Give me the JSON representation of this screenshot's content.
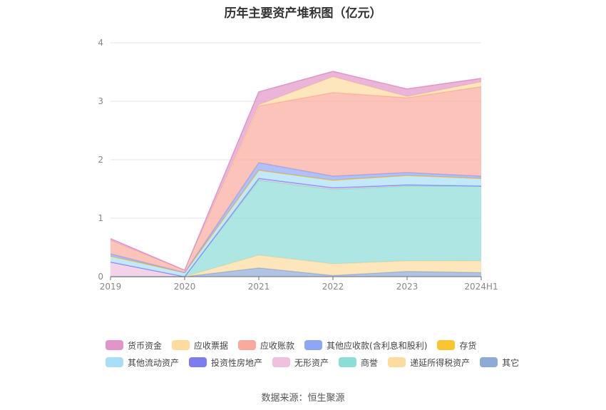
{
  "chart_data": {
    "type": "area",
    "title": "历年主要资产堆积图（亿元）",
    "source": "数据来源：恒生聚源",
    "x": [
      "2019",
      "2020",
      "2021",
      "2022",
      "2023",
      "2024H1"
    ],
    "ylim": [
      0,
      4
    ],
    "yticks": [
      "0",
      "1",
      "2",
      "3",
      "4"
    ],
    "stacked": true,
    "grid": true,
    "legend_position": "bottom",
    "series": [
      {
        "name": "其它",
        "color": "#8eaad6",
        "values": [
          0.0,
          0.0,
          0.15,
          0.02,
          0.09,
          0.07
        ]
      },
      {
        "name": "递延所得税资产",
        "color": "#fedca0",
        "values": [
          0.0,
          0.0,
          0.22,
          0.2,
          0.18,
          0.2
        ]
      },
      {
        "name": "商誉",
        "color": "#8cdcd8",
        "values": [
          0.0,
          0.0,
          1.28,
          1.27,
          1.28,
          1.28
        ]
      },
      {
        "name": "无形资产",
        "color": "#f0c0de",
        "values": [
          0.25,
          0.0,
          0.03,
          0.03,
          0.02,
          0.0
        ]
      },
      {
        "name": "投资性房地产",
        "color": "#7b7df0",
        "values": [
          0.0,
          0.0,
          0.0,
          0.0,
          0.0,
          0.0
        ]
      },
      {
        "name": "其他流动资产",
        "color": "#a8def8",
        "values": [
          0.1,
          0.07,
          0.14,
          0.13,
          0.16,
          0.13
        ]
      },
      {
        "name": "存货",
        "color": "#fbc531",
        "values": [
          0.0,
          0.0,
          0.0,
          0.0,
          0.0,
          0.0
        ]
      },
      {
        "name": "其他应收款(含利息和股利)",
        "color": "#8ea7f5",
        "values": [
          0.04,
          0.0,
          0.13,
          0.07,
          0.05,
          0.04
        ]
      },
      {
        "name": "应收账款",
        "color": "#fba99c",
        "values": [
          0.22,
          0.03,
          0.97,
          1.43,
          1.28,
          1.53
        ]
      },
      {
        "name": "应收票据",
        "color": "#fedca0",
        "values": [
          0.0,
          0.0,
          0.02,
          0.27,
          0.02,
          0.08
        ]
      },
      {
        "name": "货币资金",
        "color": "#e195c8",
        "values": [
          0.04,
          0.01,
          0.22,
          0.09,
          0.13,
          0.06
        ]
      }
    ]
  },
  "legend_rows": [
    [
      {
        "name": "货币资金",
        "color": "#e195c8"
      },
      {
        "name": "应收票据",
        "color": "#fedca0"
      },
      {
        "name": "应收账款",
        "color": "#fba99c"
      },
      {
        "name": "其他应收款(含利息和股利)",
        "color": "#8ea7f5"
      },
      {
        "name": "存货",
        "color": "#fbc531"
      }
    ],
    [
      {
        "name": "其他流动资产",
        "color": "#a8def8"
      },
      {
        "name": "投资性房地产",
        "color": "#7b7df0"
      },
      {
        "name": "无形资产",
        "color": "#f0c0de"
      },
      {
        "name": "商誉",
        "color": "#8cdcd8"
      },
      {
        "name": "递延所得税资产",
        "color": "#fedca0"
      },
      {
        "name": "其它",
        "color": "#8eaad6"
      }
    ]
  ]
}
